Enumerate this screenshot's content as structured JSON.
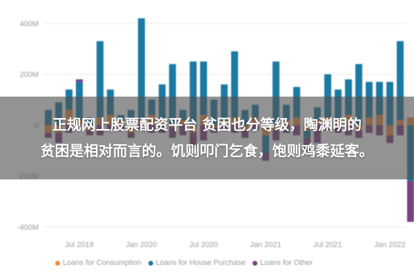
{
  "chart_data": {
    "type": "bar",
    "stacked": true,
    "ylim": [
      -430,
      470
    ],
    "y_ticks": [
      {
        "value": 400,
        "label": "400M"
      },
      {
        "value": 200,
        "label": "200M"
      },
      {
        "value": 0,
        "label": "0"
      },
      {
        "value": -200,
        "label": "-200M"
      },
      {
        "value": -400,
        "label": "-400M"
      }
    ],
    "x_ticks": [
      {
        "index": 3,
        "label": "Jul 2019"
      },
      {
        "index": 9,
        "label": "Jan 2020"
      },
      {
        "index": 15,
        "label": "Jul 2020"
      },
      {
        "index": 21,
        "label": "Jan 2021"
      },
      {
        "index": 27,
        "label": "Jul 2021"
      },
      {
        "index": 33,
        "label": "Jan 2022"
      }
    ],
    "series": [
      {
        "name": "Loans for Consumption",
        "color": "#f0883e",
        "values": [
          -30,
          -30,
          60,
          20,
          -20,
          30,
          40,
          20,
          -30,
          20,
          40,
          20,
          -10,
          20,
          -30,
          40,
          -10,
          20,
          30,
          -20,
          30,
          -40,
          -20,
          20,
          30,
          -20,
          20,
          30,
          20,
          40,
          -20,
          30,
          40,
          -40,
          20,
          30
        ]
      },
      {
        "name": "Loans for House Purchase",
        "color": "#1a7aa3",
        "values": [
          60,
          90,
          80,
          150,
          30,
          300,
          100,
          20,
          60,
          400,
          60,
          140,
          240,
          40,
          250,
          210,
          100,
          140,
          260,
          60,
          50,
          -70,
          250,
          60,
          120,
          -30,
          50,
          170,
          120,
          140,
          240,
          140,
          130,
          170,
          310,
          -220
        ]
      },
      {
        "name": "Loans for Other",
        "color": "#7b3f7f",
        "values": [
          -20,
          -40,
          -30,
          10,
          -20,
          -40,
          -20,
          -20,
          -20,
          -20,
          -30,
          -30,
          -40,
          -40,
          -60,
          -60,
          -20,
          -20,
          -30,
          -30,
          -20,
          -30,
          -40,
          -30,
          -40,
          -60,
          -70,
          -20,
          -30,
          -40,
          -30,
          -30,
          -40,
          -30,
          -40,
          -160
        ]
      }
    ]
  },
  "banner": {
    "line1": "正规网上股票配资平台 贫困也分等级，陶渊明的",
    "line2": "贫困是相对而言的。饥则叩门乞食，饱则鸡黍延客。"
  }
}
